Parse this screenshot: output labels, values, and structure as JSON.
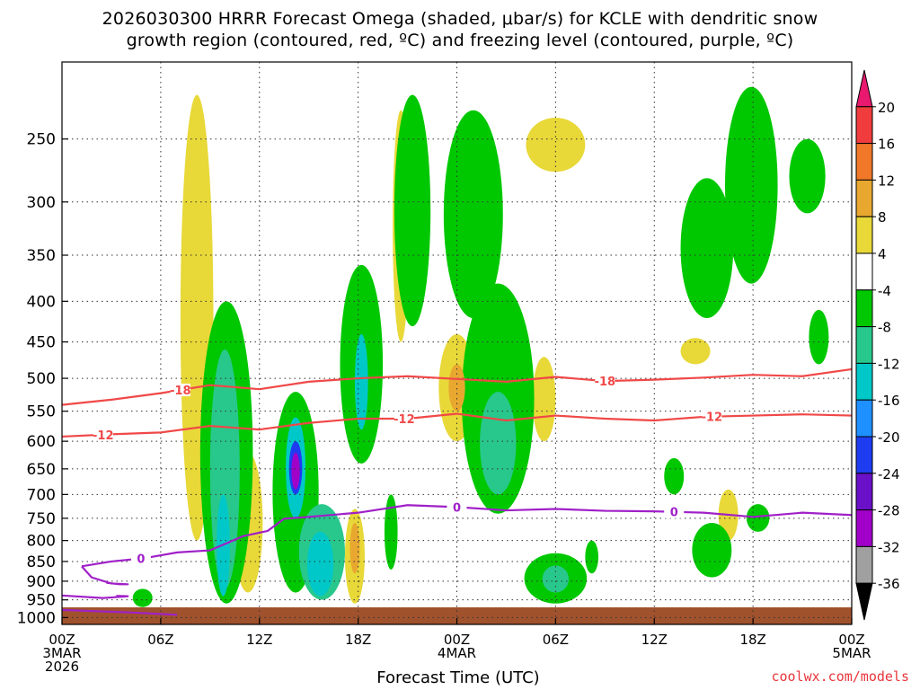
{
  "title": {
    "line1": "2026030300 HRRR Forecast Omega (shaded, μbar/s) for KCLE with dendritic snow",
    "line2": "growth region (contoured, red, ºC) and freezing level (contoured, purple, ºC)"
  },
  "credit": "coolwx.com/models",
  "chart_data": {
    "type": "heatmap",
    "title": "2026030300 HRRR Forecast Omega (shaded, μbar/s) for KCLE with dendritic snow growth region (contoured, red, ºC) and freezing level (contoured, purple, ºC)",
    "xlabel": "Forecast Time (UTC)",
    "ylabel": "",
    "x_unit": "forecast hour",
    "xlim": [
      0,
      48
    ],
    "ylim": [
      1020,
      200
    ],
    "y_scale": "log-pressure",
    "y_ticks": [
      250,
      300,
      350,
      400,
      450,
      500,
      550,
      600,
      650,
      700,
      750,
      800,
      850,
      900,
      950,
      1000
    ],
    "x_ticks": [
      {
        "x": 0,
        "lines": [
          "00Z",
          "3MAR",
          "2026"
        ]
      },
      {
        "x": 6,
        "lines": [
          "06Z"
        ]
      },
      {
        "x": 12,
        "lines": [
          "12Z"
        ]
      },
      {
        "x": 18,
        "lines": [
          "18Z"
        ]
      },
      {
        "x": 24,
        "lines": [
          "00Z",
          "4MAR"
        ]
      },
      {
        "x": 30,
        "lines": [
          "06Z"
        ]
      },
      {
        "x": 36,
        "lines": [
          "12Z"
        ]
      },
      {
        "x": 42,
        "lines": [
          "18Z"
        ]
      },
      {
        "x": 48,
        "lines": [
          "00Z",
          "5MAR"
        ]
      }
    ],
    "grid": true,
    "colorbar": {
      "placement": "right",
      "labels": [
        "20",
        "16",
        "12",
        "8",
        "4",
        "-4",
        "-8",
        "-12",
        "-16",
        "-20",
        "-24",
        "-28",
        "-32",
        "-36"
      ],
      "colors": [
        "#e8196e",
        "#f03c3c",
        "#f07828",
        "#e8a830",
        "#e8d838",
        "#ffffff",
        "#00c800",
        "#28c88c",
        "#00c8c8",
        "#1e90ff",
        "#1e3cf0",
        "#6a10c8",
        "#a000c8",
        "#a0a0a0",
        "#000000"
      ]
    },
    "omega_regions": [
      {
        "level": 4,
        "x": 8.2,
        "p0": 220,
        "p1": 800,
        "w": 1.0
      },
      {
        "level": 4,
        "x": 20.6,
        "p0": 230,
        "p1": 450,
        "w": 0.5
      },
      {
        "level": 4,
        "x": 11.3,
        "p0": 620,
        "p1": 930,
        "w": 0.9
      },
      {
        "level": 4,
        "x": 24.0,
        "p0": 440,
        "p1": 600,
        "w": 1.1
      },
      {
        "level": 8,
        "x": 24.0,
        "p0": 480,
        "p1": 550,
        "w": 0.5
      },
      {
        "level": 4,
        "x": 29.3,
        "p0": 470,
        "p1": 600,
        "w": 0.7
      },
      {
        "level": 4,
        "x": 30.0,
        "p0": 235,
        "p1": 275,
        "w": 1.8
      },
      {
        "level": 4,
        "x": 38.5,
        "p0": 445,
        "p1": 480,
        "w": 0.9
      },
      {
        "level": 4,
        "x": 40.5,
        "p0": 690,
        "p1": 800,
        "w": 0.6
      },
      {
        "level": 4,
        "x": 17.8,
        "p0": 730,
        "p1": 960,
        "w": 0.6
      },
      {
        "level": 8,
        "x": 17.8,
        "p0": 760,
        "p1": 880,
        "w": 0.3
      },
      {
        "level": -4,
        "x": 10.0,
        "p0": 400,
        "p1": 960,
        "w": 1.6
      },
      {
        "level": -8,
        "x": 9.9,
        "p0": 460,
        "p1": 920,
        "w": 0.9
      },
      {
        "level": -12,
        "x": 9.8,
        "p0": 700,
        "p1": 940,
        "w": 0.4
      },
      {
        "level": -4,
        "x": 14.2,
        "p0": 520,
        "p1": 930,
        "w": 1.4
      },
      {
        "level": -8,
        "x": 15.8,
        "p0": 720,
        "p1": 950,
        "w": 1.4
      },
      {
        "level": -12,
        "x": 15.7,
        "p0": 780,
        "p1": 940,
        "w": 0.8
      },
      {
        "level": -12,
        "x": 14.2,
        "p0": 560,
        "p1": 750,
        "w": 0.6
      },
      {
        "level": -20,
        "x": 14.2,
        "p0": 600,
        "p1": 700,
        "w": 0.4
      },
      {
        "level": -28,
        "x": 14.2,
        "p0": 620,
        "p1": 690,
        "w": 0.25
      },
      {
        "level": -4,
        "x": 18.2,
        "p0": 360,
        "p1": 640,
        "w": 1.3
      },
      {
        "level": -12,
        "x": 18.2,
        "p0": 440,
        "p1": 580,
        "w": 0.4
      },
      {
        "level": -4,
        "x": 21.3,
        "p0": 220,
        "p1": 430,
        "w": 1.1
      },
      {
        "level": -4,
        "x": 25.0,
        "p0": 230,
        "p1": 420,
        "w": 1.8
      },
      {
        "level": -4,
        "x": 26.5,
        "p0": 380,
        "p1": 740,
        "w": 2.2
      },
      {
        "level": -8,
        "x": 26.5,
        "p0": 520,
        "p1": 700,
        "w": 1.1
      },
      {
        "level": -4,
        "x": 30.0,
        "p0": 830,
        "p1": 960,
        "w": 1.9
      },
      {
        "level": -8,
        "x": 30.0,
        "p0": 860,
        "p1": 930,
        "w": 0.8
      },
      {
        "level": -4,
        "x": 39.2,
        "p0": 280,
        "p1": 420,
        "w": 1.6
      },
      {
        "level": -4,
        "x": 41.9,
        "p0": 215,
        "p1": 380,
        "w": 1.6
      },
      {
        "level": -4,
        "x": 39.5,
        "p0": 760,
        "p1": 890,
        "w": 1.2
      },
      {
        "level": -4,
        "x": 45.3,
        "p0": 250,
        "p1": 310,
        "w": 1.1
      },
      {
        "level": -4,
        "x": 46.0,
        "p0": 410,
        "p1": 480,
        "w": 0.6
      },
      {
        "level": -4,
        "x": 42.3,
        "p0": 720,
        "p1": 780,
        "w": 0.7
      },
      {
        "level": -4,
        "x": 37.2,
        "p0": 630,
        "p1": 700,
        "w": 0.6
      },
      {
        "level": -4,
        "x": 4.9,
        "p0": 920,
        "p1": 970,
        "w": 0.6
      },
      {
        "level": -4,
        "x": 20.0,
        "p0": 700,
        "p1": 870,
        "w": 0.4
      },
      {
        "level": -4,
        "x": 32.2,
        "p0": 800,
        "p1": 880,
        "w": 0.4
      }
    ],
    "contours": [
      {
        "label": "-18",
        "color": "#f04848",
        "points": [
          [
            0,
            540
          ],
          [
            3,
            532
          ],
          [
            6,
            522
          ],
          [
            9,
            510
          ],
          [
            12,
            516
          ],
          [
            15,
            505
          ],
          [
            18,
            500
          ],
          [
            21,
            497
          ],
          [
            24,
            501
          ],
          [
            27,
            505
          ],
          [
            30,
            498
          ],
          [
            33,
            504
          ],
          [
            36,
            502
          ],
          [
            39,
            499
          ],
          [
            42,
            495
          ],
          [
            45,
            497
          ],
          [
            48,
            487
          ]
        ]
      },
      {
        "label": "-12",
        "color": "#f04848",
        "points": [
          [
            0,
            592
          ],
          [
            3,
            588
          ],
          [
            6,
            585
          ],
          [
            9,
            574
          ],
          [
            12,
            580
          ],
          [
            15,
            569
          ],
          [
            18,
            562
          ],
          [
            21,
            562
          ],
          [
            24,
            554
          ],
          [
            27,
            565
          ],
          [
            30,
            557
          ],
          [
            33,
            562
          ],
          [
            36,
            565
          ],
          [
            39,
            559
          ],
          [
            42,
            557
          ],
          [
            45,
            555
          ],
          [
            48,
            557
          ]
        ]
      },
      {
        "label": "0",
        "color": "#a020c8",
        "points": [
          [
            1.2,
            862
          ],
          [
            3,
            850
          ],
          [
            5,
            842
          ],
          [
            7,
            828
          ],
          [
            9,
            823
          ],
          [
            11,
            790
          ],
          [
            12.5,
            778
          ],
          [
            13.5,
            751
          ],
          [
            15,
            747
          ],
          [
            18,
            738
          ],
          [
            21,
            722
          ],
          [
            24,
            726
          ],
          [
            27,
            733
          ],
          [
            30,
            730
          ],
          [
            33,
            734
          ],
          [
            36,
            735
          ],
          [
            39,
            738
          ],
          [
            42,
            747
          ],
          [
            45,
            738
          ],
          [
            48,
            743
          ]
        ]
      },
      {
        "label": "",
        "color": "#a020c8",
        "points": [
          [
            1.2,
            862
          ],
          [
            1.8,
            890
          ],
          [
            3,
            906
          ],
          [
            4,
            908
          ],
          [
            3.5,
            908
          ],
          [
            2.7,
            904
          ]
        ]
      },
      {
        "label": "",
        "color": "#a020c8",
        "points": [
          [
            0,
            938
          ],
          [
            2.5,
            945
          ],
          [
            4,
            940
          ],
          [
            3.3,
            939
          ]
        ]
      },
      {
        "label": "",
        "color": "#a020c8",
        "points": [
          [
            0,
            978
          ],
          [
            4,
            985
          ],
          [
            7,
            992
          ]
        ]
      }
    ]
  }
}
